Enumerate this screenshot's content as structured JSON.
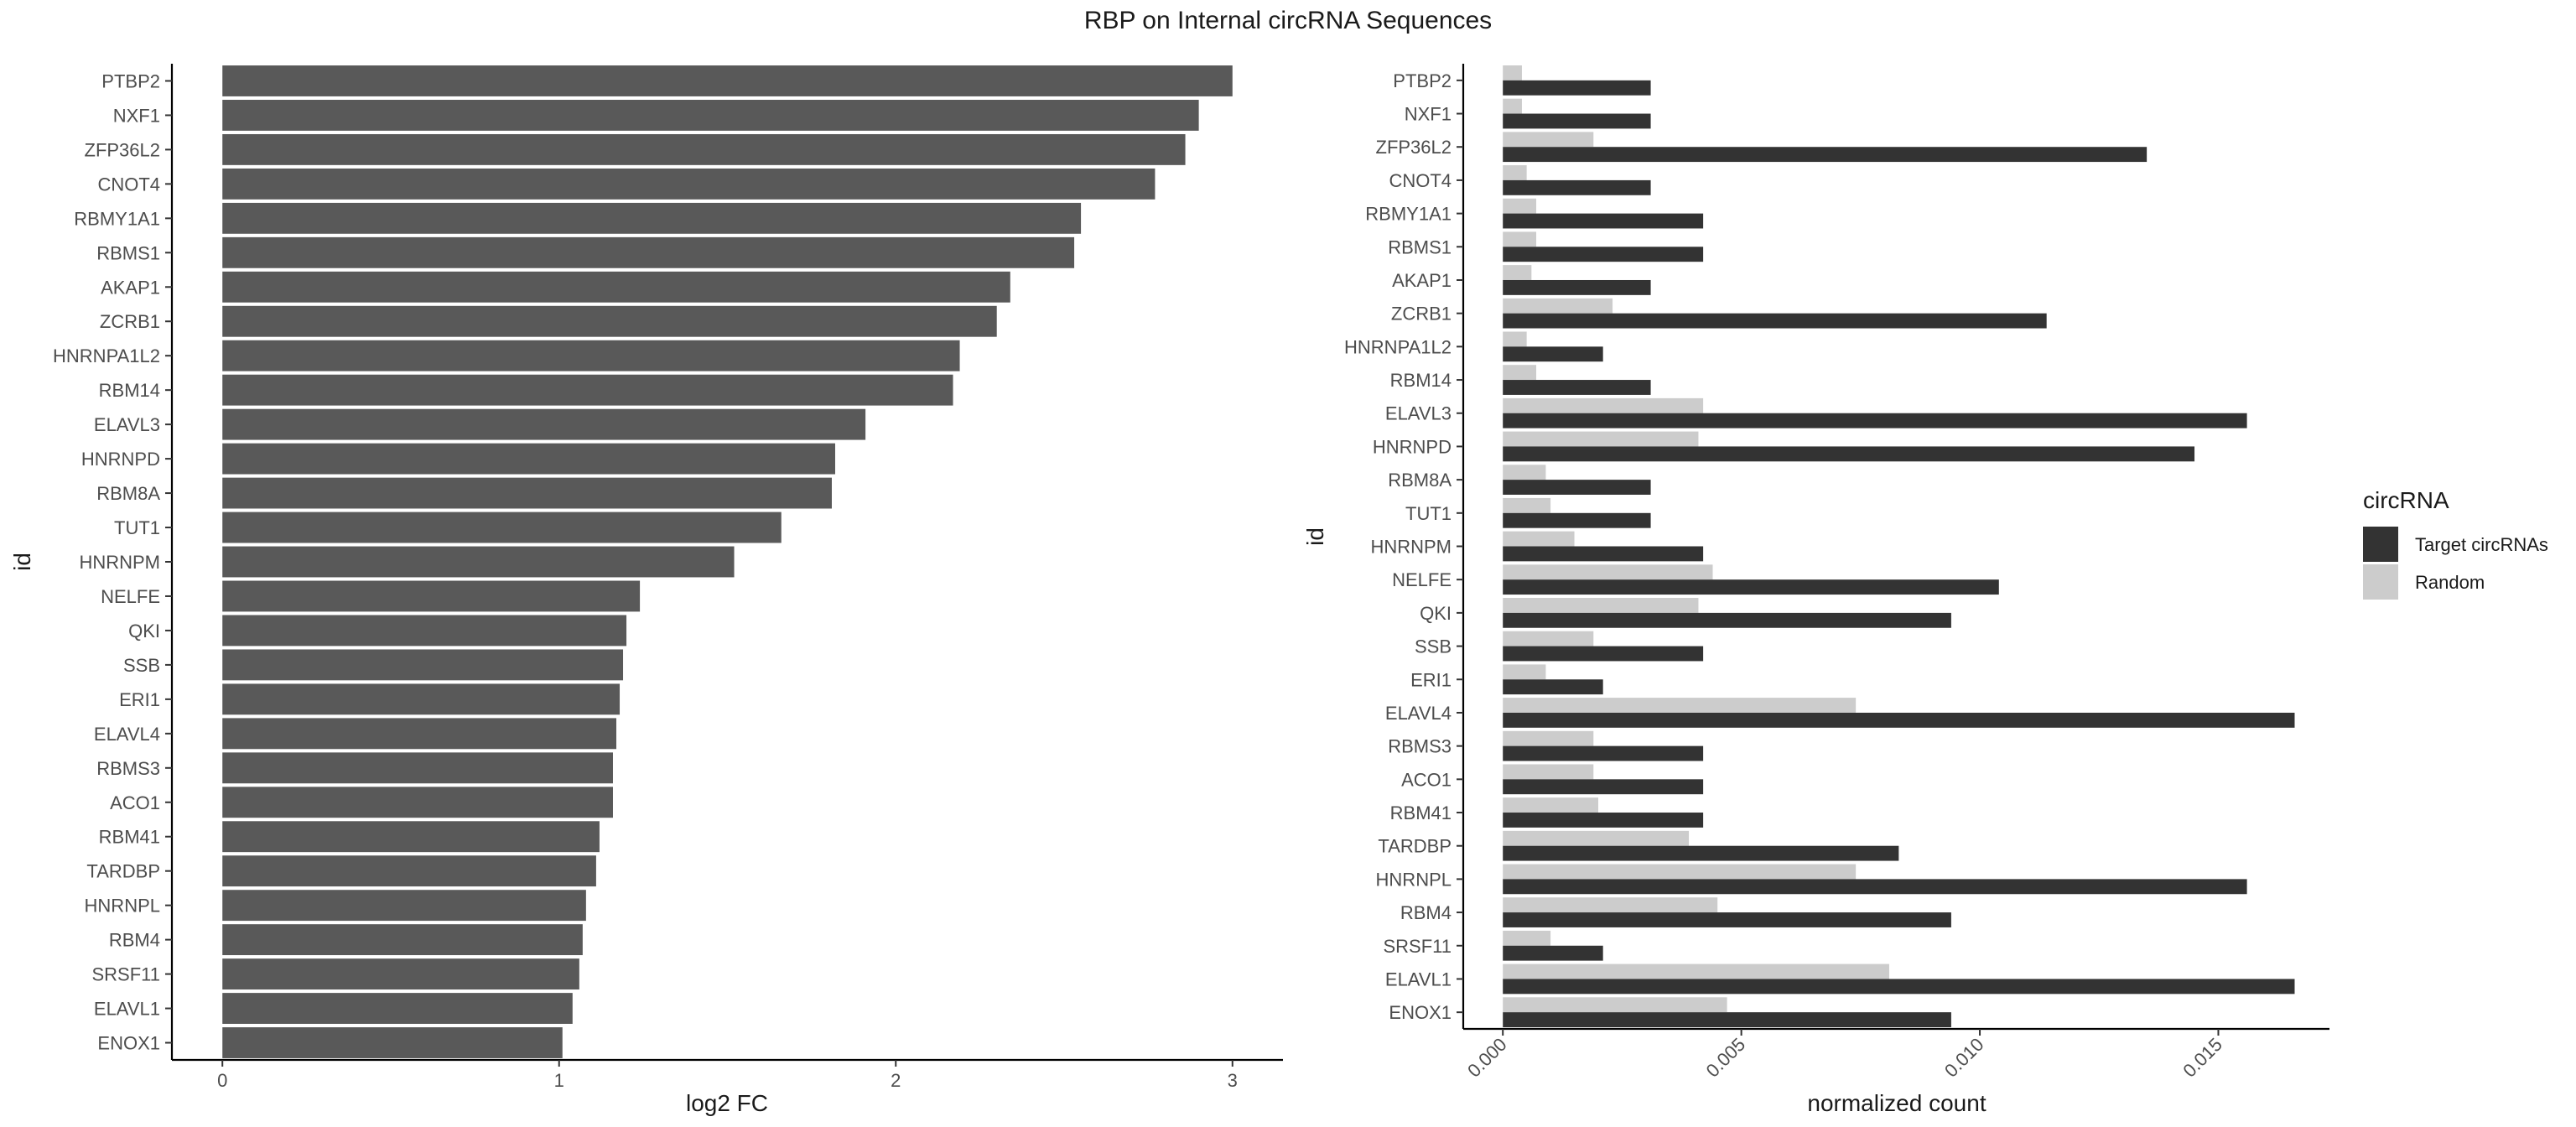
{
  "title": "RBP on Internal circRNA Sequences",
  "chart_data": [
    {
      "type": "bar",
      "orientation": "horizontal",
      "xlabel": "log2 FC",
      "ylabel": "id",
      "xlim": [
        -0.15,
        3.15
      ],
      "xticks": [
        0,
        1,
        2,
        3
      ],
      "xtick_labels": [
        "0",
        "1",
        "2",
        "3"
      ],
      "grid": false,
      "bar_color": "#595959",
      "categories": [
        "PTBP2",
        "NXF1",
        "ZFP36L2",
        "CNOT4",
        "RBMY1A1",
        "RBMS1",
        "AKAP1",
        "ZCRB1",
        "HNRNPA1L2",
        "RBM14",
        "ELAVL3",
        "HNRNPD",
        "RBM8A",
        "TUT1",
        "HNRNPM",
        "NELFE",
        "QKI",
        "SSB",
        "ERI1",
        "ELAVL4",
        "RBMS3",
        "ACO1",
        "RBM41",
        "TARDBP",
        "HNRNPL",
        "RBM4",
        "SRSF11",
        "ELAVL1",
        "ENOX1"
      ],
      "values": [
        3.0,
        2.9,
        2.86,
        2.77,
        2.55,
        2.53,
        2.34,
        2.3,
        2.19,
        2.17,
        1.91,
        1.82,
        1.81,
        1.66,
        1.52,
        1.24,
        1.2,
        1.19,
        1.18,
        1.17,
        1.16,
        1.16,
        1.12,
        1.11,
        1.08,
        1.07,
        1.06,
        1.04,
        1.01
      ]
    },
    {
      "type": "bar",
      "orientation": "horizontal",
      "grouped": true,
      "xlabel": "normalized count",
      "ylabel": "id",
      "xlim": [
        -0.00083,
        0.01733
      ],
      "xticks": [
        0.0,
        0.005,
        0.01,
        0.015
      ],
      "xtick_labels": [
        "0.000",
        "0.005",
        "0.010",
        "0.015"
      ],
      "xtick_rotation": -45,
      "grid": false,
      "legend": {
        "title": "circRNA",
        "placement": "right"
      },
      "categories": [
        "PTBP2",
        "NXF1",
        "ZFP36L2",
        "CNOT4",
        "RBMY1A1",
        "RBMS1",
        "AKAP1",
        "ZCRB1",
        "HNRNPA1L2",
        "RBM14",
        "ELAVL3",
        "HNRNPD",
        "RBM8A",
        "TUT1",
        "HNRNPM",
        "NELFE",
        "QKI",
        "SSB",
        "ERI1",
        "ELAVL4",
        "RBMS3",
        "ACO1",
        "RBM41",
        "TARDBP",
        "HNRNPL",
        "RBM4",
        "SRSF11",
        "ELAVL1",
        "ENOX1"
      ],
      "series": [
        {
          "name": "Target circRNAs",
          "color": "#333333",
          "values": [
            0.0031,
            0.0031,
            0.0135,
            0.0031,
            0.0042,
            0.0042,
            0.0031,
            0.0114,
            0.0021,
            0.0031,
            0.0156,
            0.0145,
            0.0031,
            0.0031,
            0.0042,
            0.0104,
            0.0094,
            0.0042,
            0.0021,
            0.0166,
            0.0042,
            0.0042,
            0.0042,
            0.0083,
            0.0156,
            0.0094,
            0.0021,
            0.0166,
            0.0094
          ]
        },
        {
          "name": "Random",
          "color": "#cccccc",
          "values": [
            0.0004,
            0.0004,
            0.0019,
            0.0005,
            0.0007,
            0.0007,
            0.0006,
            0.0023,
            0.0005,
            0.0007,
            0.0042,
            0.0041,
            0.0009,
            0.001,
            0.0015,
            0.0044,
            0.0041,
            0.0019,
            0.0009,
            0.0074,
            0.0019,
            0.0019,
            0.002,
            0.0039,
            0.0074,
            0.0045,
            0.001,
            0.0081,
            0.0047
          ]
        }
      ]
    }
  ]
}
